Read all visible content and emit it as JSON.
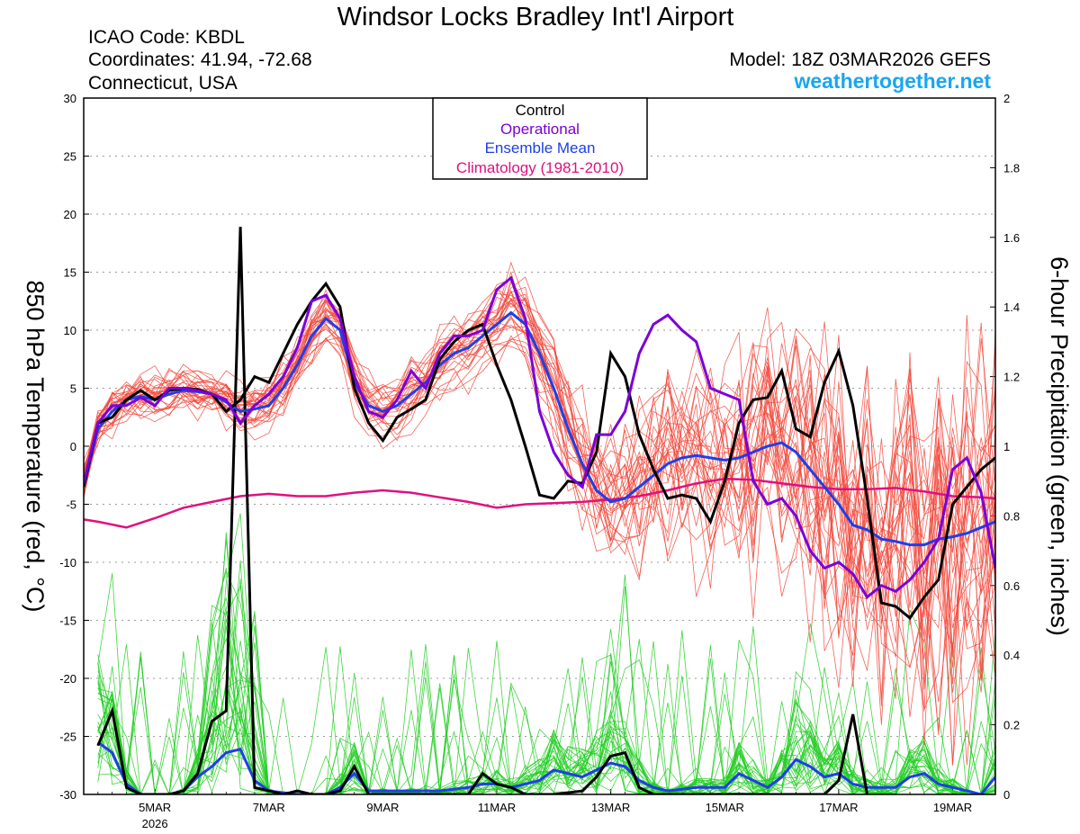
{
  "header": {
    "title": "Windsor Locks Bradley Int'l Airport",
    "icao": "ICAO Code: KBDL",
    "coordinates": "Coordinates: 41.94, -72.68",
    "location": "Connecticut, USA",
    "model": "Model: 18Z 03MAR2026 GEFS",
    "website": "weathertogether.net"
  },
  "colors": {
    "control": "#000000",
    "operational": "#7a00d9",
    "ensemble_mean": "#1f3ee8",
    "climatology": "#e0107f",
    "members_temp": "#f2483b",
    "members_precip": "#22cc22",
    "website": "#1aa6f0"
  },
  "chart_data": {
    "type": "line",
    "ylabel_left": "850 hPa Temperature (red, °C)",
    "ylabel_right": "6-hour Precipitation (green, inches)",
    "ylim_left": [
      -30,
      30
    ],
    "ylim_right": [
      0,
      2
    ],
    "yticks_left": [
      "-30",
      "-25",
      "-20",
      "-15",
      "-10",
      "-5",
      "0",
      "5",
      "10",
      "15",
      "20",
      "25",
      "30"
    ],
    "yticks_right": [
      "0",
      "0.2",
      "0.4",
      "0.6",
      "0.8",
      "1",
      "1.2",
      "1.4",
      "1.6",
      "1.8",
      "2"
    ],
    "xlim_days": [
      3.75,
      19.75
    ],
    "xticks": [
      {
        "day": 5,
        "label": "5MAR",
        "sub": "2026"
      },
      {
        "day": 7,
        "label": "7MAR",
        "sub": ""
      },
      {
        "day": 9,
        "label": "9MAR",
        "sub": ""
      },
      {
        "day": 11,
        "label": "11MAR",
        "sub": ""
      },
      {
        "day": 13,
        "label": "13MAR",
        "sub": ""
      },
      {
        "day": 15,
        "label": "15MAR",
        "sub": ""
      },
      {
        "day": 17,
        "label": "17MAR",
        "sub": ""
      },
      {
        "day": 19,
        "label": "19MAR",
        "sub": ""
      }
    ],
    "grid": true,
    "legend": [
      "Control",
      "Operational",
      "Ensemble Mean",
      "Climatology (1981-2010)"
    ],
    "legend_position": "top-center",
    "temperature": {
      "control": [
        [
          3.75,
          -3.5
        ],
        [
          4,
          2
        ],
        [
          4.25,
          2.5
        ],
        [
          4.5,
          4
        ],
        [
          4.75,
          4.8
        ],
        [
          5,
          4
        ],
        [
          5.25,
          4.8
        ],
        [
          5.5,
          5
        ],
        [
          5.75,
          4.9
        ],
        [
          6,
          4.5
        ],
        [
          6.25,
          3
        ],
        [
          6.5,
          4
        ],
        [
          6.75,
          6
        ],
        [
          7,
          5.5
        ],
        [
          7.25,
          8
        ],
        [
          7.5,
          10.5
        ],
        [
          7.75,
          12.5
        ],
        [
          8,
          14
        ],
        [
          8.25,
          12
        ],
        [
          8.5,
          5
        ],
        [
          8.75,
          2
        ],
        [
          9,
          0.5
        ],
        [
          9.25,
          2.5
        ],
        [
          9.5,
          3.2
        ],
        [
          9.75,
          4
        ],
        [
          10,
          7.5
        ],
        [
          10.25,
          9
        ],
        [
          10.5,
          10
        ],
        [
          10.75,
          10.5
        ],
        [
          11,
          7
        ],
        [
          11.25,
          4
        ],
        [
          11.5,
          0
        ],
        [
          11.75,
          -4.2
        ],
        [
          12,
          -4.5
        ],
        [
          12.25,
          -3
        ],
        [
          12.5,
          -3.2
        ],
        [
          12.75,
          -0.5
        ],
        [
          13,
          8
        ],
        [
          13.25,
          6
        ],
        [
          13.5,
          1
        ],
        [
          13.75,
          -2
        ],
        [
          14,
          -4.5
        ],
        [
          14.25,
          -4.2
        ],
        [
          14.5,
          -4.5
        ],
        [
          14.75,
          -6.5
        ],
        [
          15,
          -3
        ],
        [
          15.25,
          2
        ],
        [
          15.5,
          4
        ],
        [
          15.75,
          4.2
        ],
        [
          16,
          6.5
        ],
        [
          16.25,
          1.5
        ],
        [
          16.5,
          0.8
        ],
        [
          16.75,
          5.5
        ],
        [
          17,
          8.2
        ],
        [
          17.25,
          3.5
        ],
        [
          17.5,
          -4.5
        ],
        [
          17.75,
          -13.5
        ],
        [
          18,
          -13.8
        ],
        [
          18.25,
          -14.8
        ],
        [
          18.5,
          -13
        ],
        [
          18.75,
          -11.5
        ],
        [
          19,
          -5
        ],
        [
          19.25,
          -3.5
        ],
        [
          19.5,
          -2
        ],
        [
          19.75,
          -1
        ]
      ],
      "operational": [
        [
          3.75,
          -3.2
        ],
        [
          4,
          2
        ],
        [
          4.25,
          3.5
        ],
        [
          4.5,
          3.5
        ],
        [
          4.75,
          4.2
        ],
        [
          5,
          3.5
        ],
        [
          5.25,
          5
        ],
        [
          5.5,
          5
        ],
        [
          5.75,
          4.8
        ],
        [
          6,
          4.5
        ],
        [
          6.25,
          4
        ],
        [
          6.5,
          2
        ],
        [
          6.75,
          3.5
        ],
        [
          7,
          4.5
        ],
        [
          7.25,
          6
        ],
        [
          7.5,
          8.5
        ],
        [
          7.75,
          12.5
        ],
        [
          8,
          13
        ],
        [
          8.25,
          11
        ],
        [
          8.5,
          6
        ],
        [
          8.75,
          3
        ],
        [
          9,
          2.5
        ],
        [
          9.25,
          4
        ],
        [
          9.5,
          6.5
        ],
        [
          9.75,
          5
        ],
        [
          10,
          8
        ],
        [
          10.25,
          9.5
        ],
        [
          10.5,
          9.5
        ],
        [
          10.75,
          10
        ],
        [
          11,
          13.5
        ],
        [
          11.25,
          14.5
        ],
        [
          11.5,
          11
        ],
        [
          11.75,
          3
        ],
        [
          12,
          -0.5
        ],
        [
          12.25,
          -2.5
        ],
        [
          12.5,
          -3.5
        ],
        [
          12.75,
          1
        ],
        [
          13,
          1
        ],
        [
          13.25,
          3
        ],
        [
          13.5,
          8
        ],
        [
          13.75,
          10.5
        ],
        [
          14,
          11.3
        ],
        [
          14.25,
          10
        ],
        [
          14.5,
          9
        ],
        [
          14.75,
          5
        ],
        [
          15,
          4.5
        ],
        [
          15.25,
          4
        ],
        [
          15.5,
          -3
        ],
        [
          15.75,
          -5
        ],
        [
          16,
          -4.5
        ],
        [
          16.25,
          -6
        ],
        [
          16.5,
          -9
        ],
        [
          16.75,
          -10.5
        ],
        [
          17,
          -10
        ],
        [
          17.25,
          -11
        ],
        [
          17.5,
          -13
        ],
        [
          17.75,
          -12
        ],
        [
          18,
          -12.5
        ],
        [
          18.25,
          -11.5
        ],
        [
          18.5,
          -10
        ],
        [
          18.75,
          -8
        ],
        [
          19,
          -2
        ],
        [
          19.25,
          -1
        ],
        [
          19.5,
          -4
        ],
        [
          19.75,
          -10.5
        ]
      ],
      "ensemble_mean": [
        [
          3.75,
          -3.5
        ],
        [
          4,
          1.5
        ],
        [
          4.25,
          3
        ],
        [
          4.5,
          4
        ],
        [
          4.75,
          4.3
        ],
        [
          5,
          4
        ],
        [
          5.25,
          4.5
        ],
        [
          5.5,
          4.8
        ],
        [
          5.75,
          4.7
        ],
        [
          6,
          4.5
        ],
        [
          6.25,
          3.8
        ],
        [
          6.5,
          3
        ],
        [
          6.75,
          3.2
        ],
        [
          7,
          3.5
        ],
        [
          7.25,
          5
        ],
        [
          7.5,
          7
        ],
        [
          7.75,
          9.5
        ],
        [
          8,
          11
        ],
        [
          8.25,
          10
        ],
        [
          8.5,
          5.5
        ],
        [
          8.75,
          3.5
        ],
        [
          9,
          3
        ],
        [
          9.25,
          3.5
        ],
        [
          9.5,
          4.5
        ],
        [
          9.75,
          5.5
        ],
        [
          10,
          7
        ],
        [
          10.25,
          8
        ],
        [
          10.5,
          8.5
        ],
        [
          10.75,
          9.5
        ],
        [
          11,
          10.5
        ],
        [
          11.25,
          11.5
        ],
        [
          11.5,
          10.5
        ],
        [
          11.75,
          8
        ],
        [
          12,
          5
        ],
        [
          12.25,
          1.5
        ],
        [
          12.5,
          -1.5
        ],
        [
          12.75,
          -3.8
        ],
        [
          13,
          -4.8
        ],
        [
          13.25,
          -4.5
        ],
        [
          13.5,
          -3.5
        ],
        [
          13.75,
          -2.5
        ],
        [
          14,
          -1.5
        ],
        [
          14.25,
          -1
        ],
        [
          14.5,
          -0.8
        ],
        [
          14.75,
          -1
        ],
        [
          15,
          -1.2
        ],
        [
          15.25,
          -1
        ],
        [
          15.5,
          -0.5
        ],
        [
          15.75,
          0
        ],
        [
          16,
          0.3
        ],
        [
          16.25,
          -0.5
        ],
        [
          16.5,
          -2
        ],
        [
          16.75,
          -3.5
        ],
        [
          17,
          -5
        ],
        [
          17.25,
          -6.8
        ],
        [
          17.5,
          -7.2
        ],
        [
          17.75,
          -8
        ],
        [
          18,
          -8.2
        ],
        [
          18.25,
          -8.5
        ],
        [
          18.5,
          -8.5
        ],
        [
          18.75,
          -8
        ],
        [
          19,
          -7.8
        ],
        [
          19.25,
          -7.5
        ],
        [
          19.5,
          -7
        ],
        [
          19.75,
          -6.5
        ]
      ],
      "climatology": [
        [
          3.75,
          -6.3
        ],
        [
          4,
          -6.5
        ],
        [
          4.5,
          -7
        ],
        [
          5,
          -6.2
        ],
        [
          5.5,
          -5.3
        ],
        [
          6,
          -4.8
        ],
        [
          6.5,
          -4.3
        ],
        [
          7,
          -4.1
        ],
        [
          7.5,
          -4.3
        ],
        [
          8,
          -4.3
        ],
        [
          8.5,
          -4
        ],
        [
          9,
          -3.8
        ],
        [
          9.5,
          -4
        ],
        [
          10,
          -4.4
        ],
        [
          10.5,
          -4.8
        ],
        [
          11,
          -5.3
        ],
        [
          11.5,
          -5
        ],
        [
          12,
          -4.9
        ],
        [
          12.5,
          -4.8
        ],
        [
          13,
          -4.6
        ],
        [
          13.5,
          -4.3
        ],
        [
          14,
          -3.8
        ],
        [
          14.5,
          -3.2
        ],
        [
          15,
          -2.8
        ],
        [
          15.5,
          -2.9
        ],
        [
          16,
          -3.2
        ],
        [
          16.5,
          -3.5
        ],
        [
          17,
          -3.7
        ],
        [
          17.5,
          -3.7
        ],
        [
          18,
          -3.6
        ],
        [
          18.5,
          -3.9
        ],
        [
          19,
          -4.3
        ],
        [
          19.5,
          -4.4
        ],
        [
          19.75,
          -4.5
        ]
      ]
    },
    "precipitation": {
      "control": [
        [
          4,
          0.14
        ],
        [
          4.25,
          0.24
        ],
        [
          4.5,
          0.02
        ],
        [
          4.75,
          0
        ],
        [
          5,
          0
        ],
        [
          5.25,
          0
        ],
        [
          5.5,
          0.01
        ],
        [
          5.75,
          0.06
        ],
        [
          6,
          0.21
        ],
        [
          6.25,
          0.24
        ],
        [
          6.5,
          1.63
        ],
        [
          6.75,
          0.02
        ],
        [
          7,
          0.01
        ],
        [
          7.25,
          0
        ],
        [
          7.5,
          0.01
        ],
        [
          7.75,
          0
        ],
        [
          8,
          0
        ],
        [
          8.25,
          0.01
        ],
        [
          8.5,
          0.08
        ],
        [
          8.75,
          0
        ],
        [
          9,
          0
        ],
        [
          10,
          0
        ],
        [
          10.5,
          0
        ],
        [
          10.75,
          0.06
        ],
        [
          11,
          0.03
        ],
        [
          11.25,
          0.02
        ],
        [
          11.5,
          0
        ],
        [
          12,
          0
        ],
        [
          12.5,
          0.01
        ],
        [
          12.75,
          0.05
        ],
        [
          13,
          0.11
        ],
        [
          13.25,
          0.12
        ],
        [
          13.5,
          0.02
        ],
        [
          13.75,
          0
        ],
        [
          14,
          0
        ],
        [
          15,
          0
        ],
        [
          16,
          0
        ],
        [
          16.75,
          0
        ],
        [
          17,
          0.04
        ],
        [
          17.25,
          0.23
        ],
        [
          17.5,
          0
        ]
      ],
      "ensemble_mean": [
        [
          4,
          0.15
        ],
        [
          4.25,
          0.12
        ],
        [
          4.5,
          0.03
        ],
        [
          4.75,
          0
        ],
        [
          5,
          0
        ],
        [
          5.25,
          0
        ],
        [
          5.5,
          0.01
        ],
        [
          5.75,
          0.05
        ],
        [
          6,
          0.08
        ],
        [
          6.25,
          0.12
        ],
        [
          6.5,
          0.13
        ],
        [
          6.75,
          0.04
        ],
        [
          7,
          0.01
        ],
        [
          7.5,
          0
        ],
        [
          8,
          0
        ],
        [
          8.25,
          0.02
        ],
        [
          8.5,
          0.06
        ],
        [
          8.75,
          0.01
        ],
        [
          9,
          0.01
        ],
        [
          9.5,
          0.01
        ],
        [
          10,
          0.01
        ],
        [
          10.5,
          0.02
        ],
        [
          10.75,
          0.03
        ],
        [
          11,
          0.03
        ],
        [
          11.25,
          0.02
        ],
        [
          11.5,
          0.03
        ],
        [
          11.75,
          0.04
        ],
        [
          12,
          0.07
        ],
        [
          12.25,
          0.06
        ],
        [
          12.5,
          0.05
        ],
        [
          12.75,
          0.07
        ],
        [
          13,
          0.09
        ],
        [
          13.25,
          0.08
        ],
        [
          13.5,
          0.04
        ],
        [
          13.75,
          0.02
        ],
        [
          14,
          0.01
        ],
        [
          14.5,
          0.02
        ],
        [
          15,
          0.02
        ],
        [
          15.25,
          0.06
        ],
        [
          15.5,
          0.04
        ],
        [
          15.75,
          0.02
        ],
        [
          16,
          0.05
        ],
        [
          16.25,
          0.1
        ],
        [
          16.5,
          0.08
        ],
        [
          16.75,
          0.05
        ],
        [
          17,
          0.06
        ],
        [
          17.25,
          0.03
        ],
        [
          17.5,
          0.02
        ],
        [
          18,
          0.02
        ],
        [
          18.25,
          0.05
        ],
        [
          18.5,
          0.06
        ],
        [
          18.75,
          0.03
        ],
        [
          19,
          0.02
        ],
        [
          19.25,
          0.01
        ],
        [
          19.5,
          0
        ],
        [
          19.75,
          0.05
        ]
      ]
    }
  }
}
